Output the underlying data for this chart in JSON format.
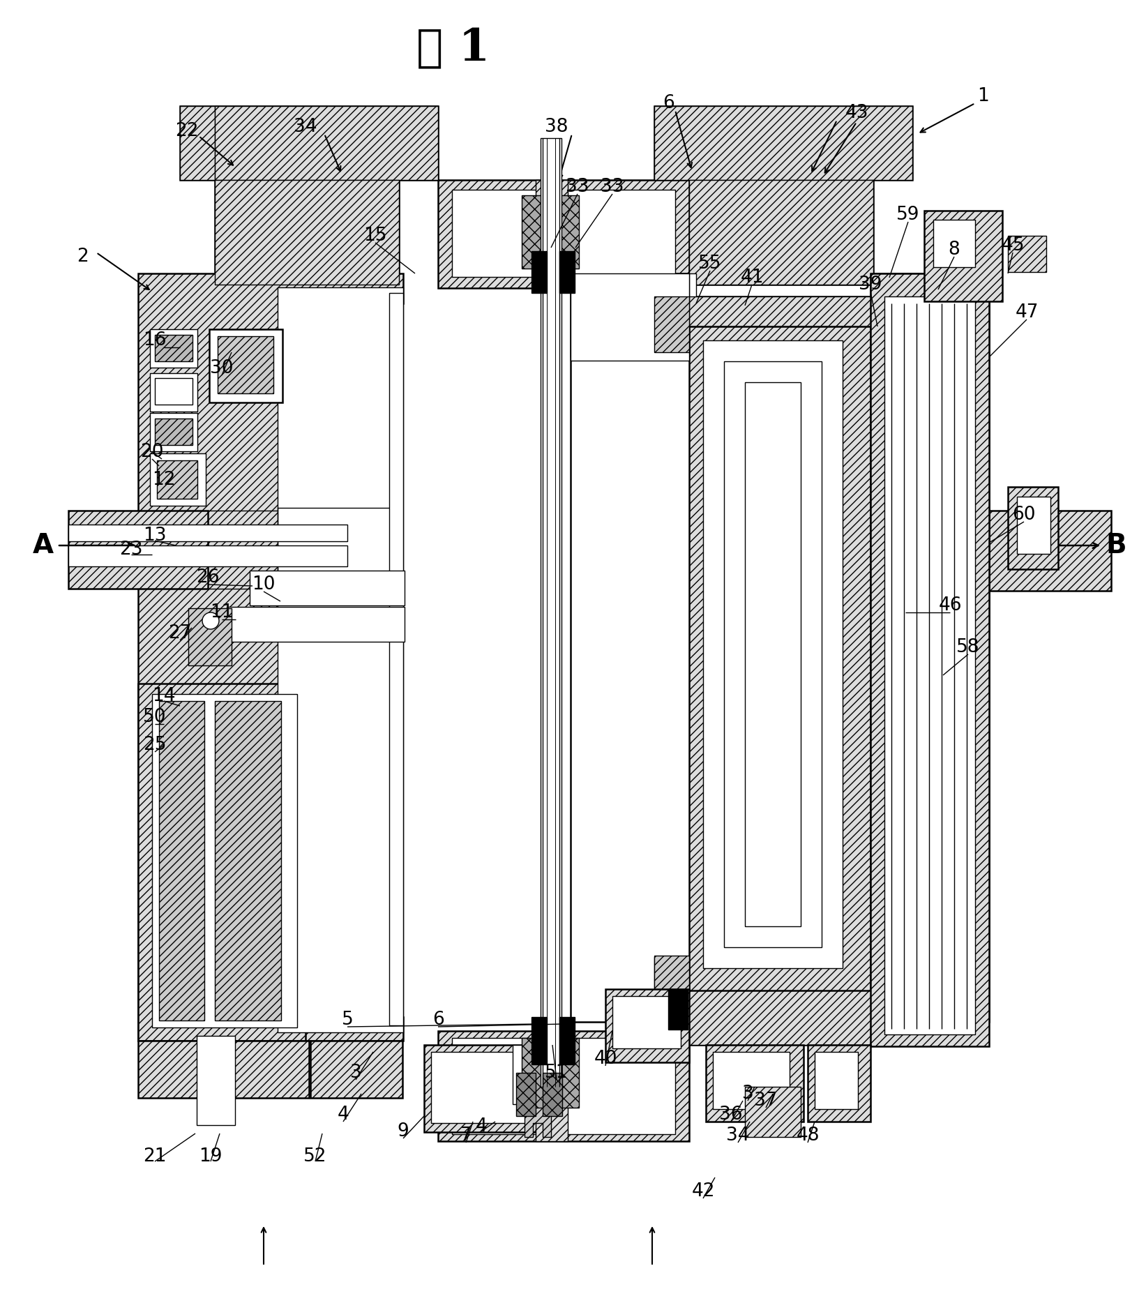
{
  "title": "图 1",
  "bg_color": "#ffffff",
  "line_color": "#000000",
  "fig_width": 16.43,
  "fig_height": 18.68,
  "label_size": 19,
  "labels": [
    [
      "1",
      1410,
      138
    ],
    [
      "2",
      118,
      368
    ],
    [
      "3",
      510,
      1538
    ],
    [
      "3",
      1072,
      1568
    ],
    [
      "4",
      492,
      1598
    ],
    [
      "4",
      690,
      1615
    ],
    [
      "5",
      498,
      1462
    ],
    [
      "6",
      628,
      1462
    ],
    [
      "6",
      958,
      148
    ],
    [
      "7",
      668,
      1628
    ],
    [
      "8",
      1368,
      358
    ],
    [
      "9",
      578,
      1622
    ],
    [
      "10",
      378,
      838
    ],
    [
      "11",
      318,
      878
    ],
    [
      "12",
      235,
      688
    ],
    [
      "13",
      222,
      768
    ],
    [
      "14",
      235,
      998
    ],
    [
      "15",
      538,
      338
    ],
    [
      "16",
      222,
      488
    ],
    [
      "19",
      302,
      1658
    ],
    [
      "20",
      218,
      648
    ],
    [
      "21",
      222,
      1658
    ],
    [
      "22",
      268,
      188
    ],
    [
      "23",
      188,
      788
    ],
    [
      "25",
      222,
      1068
    ],
    [
      "26",
      298,
      828
    ],
    [
      "27",
      258,
      908
    ],
    [
      "30",
      318,
      528
    ],
    [
      "33",
      828,
      268
    ],
    [
      "33",
      878,
      268
    ],
    [
      "34",
      438,
      182
    ],
    [
      "34",
      1058,
      1628
    ],
    [
      "36",
      1048,
      1598
    ],
    [
      "37",
      1098,
      1578
    ],
    [
      "38",
      798,
      182
    ],
    [
      "39",
      1248,
      408
    ],
    [
      "40",
      868,
      1518
    ],
    [
      "41",
      1078,
      398
    ],
    [
      "42",
      1008,
      1708
    ],
    [
      "43",
      1228,
      162
    ],
    [
      "45",
      1452,
      352
    ],
    [
      "46",
      1362,
      868
    ],
    [
      "47",
      1472,
      448
    ],
    [
      "48",
      1158,
      1628
    ],
    [
      "50",
      222,
      1028
    ],
    [
      "51",
      798,
      1538
    ],
    [
      "52",
      452,
      1658
    ],
    [
      "55",
      1018,
      378
    ],
    [
      "58",
      1388,
      928
    ],
    [
      "59",
      1302,
      308
    ],
    [
      "60",
      1468,
      738
    ]
  ]
}
